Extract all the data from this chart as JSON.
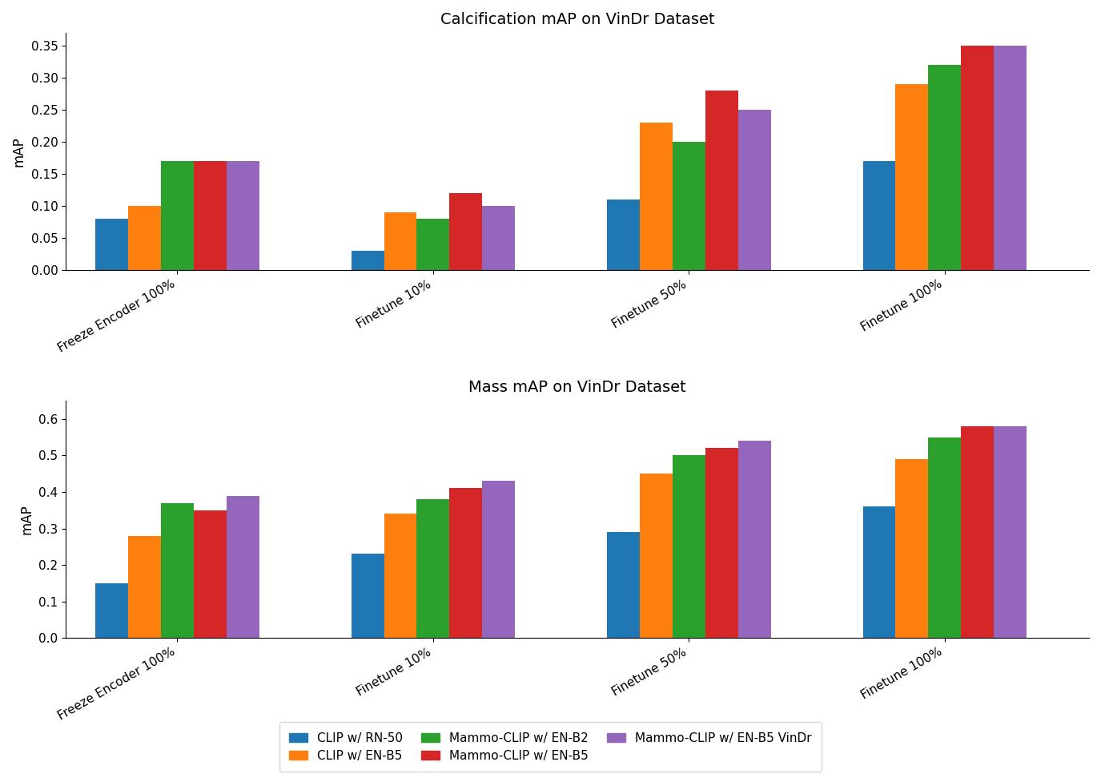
{
  "categories": [
    "Freeze Encoder 100%",
    "Finetune 10%",
    "Finetune 50%",
    "Finetune 100%"
  ],
  "series_labels": [
    "CLIP w/ RN-50",
    "CLIP w/ EN-B5",
    "Mammo-CLIP w/ EN-B2",
    "Mammo-CLIP w/ EN-B5",
    "Mammo-CLIP w/ EN-B5 VinDr"
  ],
  "colors": [
    "#1f77b4",
    "#ff7f0e",
    "#2ca02c",
    "#d62728",
    "#9467bd"
  ],
  "calcification": {
    "title": "Calcification mAP on VinDr Dataset",
    "ylabel": "mAP",
    "ylim": [
      0,
      0.37
    ],
    "yticks": [
      0.0,
      0.05,
      0.1,
      0.15,
      0.2,
      0.25,
      0.3,
      0.35
    ],
    "data": [
      [
        0.08,
        0.1,
        0.17,
        0.17,
        0.17
      ],
      [
        0.03,
        0.09,
        0.08,
        0.12,
        0.1
      ],
      [
        0.11,
        0.23,
        0.2,
        0.28,
        0.25
      ],
      [
        0.17,
        0.29,
        0.32,
        0.35,
        0.35
      ]
    ]
  },
  "mass": {
    "title": "Mass mAP on VinDr Dataset",
    "ylabel": "mAP",
    "ylim": [
      0,
      0.65
    ],
    "yticks": [
      0.0,
      0.1,
      0.2,
      0.3,
      0.4,
      0.5,
      0.6
    ],
    "data": [
      [
        0.15,
        0.28,
        0.37,
        0.35,
        0.39
      ],
      [
        0.23,
        0.34,
        0.38,
        0.41,
        0.43
      ],
      [
        0.29,
        0.45,
        0.5,
        0.52,
        0.54
      ],
      [
        0.36,
        0.49,
        0.55,
        0.58,
        0.58
      ]
    ]
  }
}
